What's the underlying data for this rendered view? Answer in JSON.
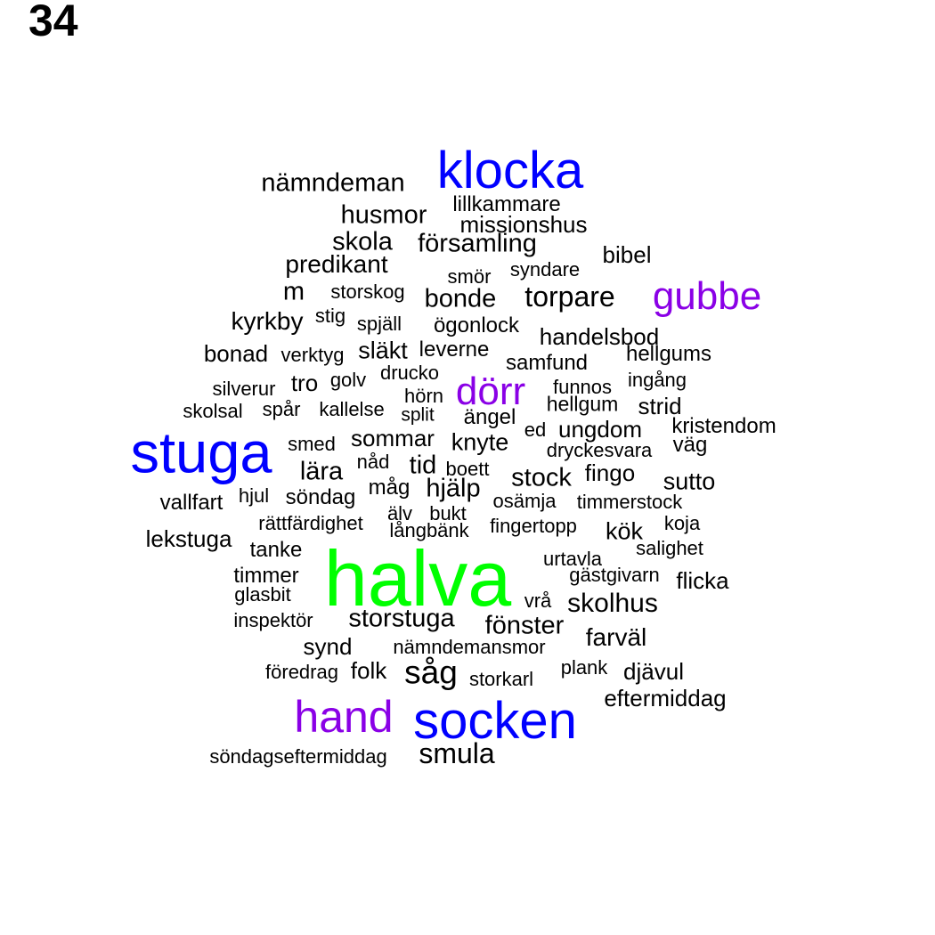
{
  "page_number": "34",
  "colors": {
    "black": "#000000",
    "blue": "#0000ff",
    "purple": "#8a00e6",
    "green": "#00ff00"
  },
  "words": [
    {
      "text": "klocka",
      "color": "blue"
    },
    {
      "text": "nämndeman",
      "color": "black"
    },
    {
      "text": "lillkammare",
      "color": "black"
    },
    {
      "text": "husmor",
      "color": "black"
    },
    {
      "text": "missionshus",
      "color": "black"
    },
    {
      "text": "skola",
      "color": "black"
    },
    {
      "text": "församling",
      "color": "black"
    },
    {
      "text": "bibel",
      "color": "black"
    },
    {
      "text": "predikant",
      "color": "black"
    },
    {
      "text": "syndare",
      "color": "black"
    },
    {
      "text": "smör",
      "color": "black"
    },
    {
      "text": "m",
      "color": "black"
    },
    {
      "text": "storskog",
      "color": "black"
    },
    {
      "text": "bonde",
      "color": "black"
    },
    {
      "text": "torpare",
      "color": "black"
    },
    {
      "text": "gubbe",
      "color": "purple"
    },
    {
      "text": "kyrkby",
      "color": "black"
    },
    {
      "text": "stig",
      "color": "black"
    },
    {
      "text": "spjäll",
      "color": "black"
    },
    {
      "text": "ögonlock",
      "color": "black"
    },
    {
      "text": "handelsbod",
      "color": "black"
    },
    {
      "text": "bonad",
      "color": "black"
    },
    {
      "text": "verktyg",
      "color": "black"
    },
    {
      "text": "släkt",
      "color": "black"
    },
    {
      "text": "leverne",
      "color": "black"
    },
    {
      "text": "samfund",
      "color": "black"
    },
    {
      "text": "hellgums",
      "color": "black"
    },
    {
      "text": "silverur",
      "color": "black"
    },
    {
      "text": "tro",
      "color": "black"
    },
    {
      "text": "golv",
      "color": "black"
    },
    {
      "text": "drucko",
      "color": "black"
    },
    {
      "text": "hörn",
      "color": "black"
    },
    {
      "text": "dörr",
      "color": "purple"
    },
    {
      "text": "funnos",
      "color": "black"
    },
    {
      "text": "ingång",
      "color": "black"
    },
    {
      "text": "skolsal",
      "color": "black"
    },
    {
      "text": "spår",
      "color": "black"
    },
    {
      "text": "kallelse",
      "color": "black"
    },
    {
      "text": "split",
      "color": "black"
    },
    {
      "text": "ängel",
      "color": "black"
    },
    {
      "text": "hellgum",
      "color": "black"
    },
    {
      "text": "strid",
      "color": "black"
    },
    {
      "text": "stuga",
      "color": "blue"
    },
    {
      "text": "smed",
      "color": "black"
    },
    {
      "text": "sommar",
      "color": "black"
    },
    {
      "text": "knyte",
      "color": "black"
    },
    {
      "text": "ed",
      "color": "black"
    },
    {
      "text": "ungdom",
      "color": "black"
    },
    {
      "text": "kristendom",
      "color": "black"
    },
    {
      "text": "dryckesvara",
      "color": "black"
    },
    {
      "text": "väg",
      "color": "black"
    },
    {
      "text": "lära",
      "color": "black"
    },
    {
      "text": "nåd",
      "color": "black"
    },
    {
      "text": "tid",
      "color": "black"
    },
    {
      "text": "boett",
      "color": "black"
    },
    {
      "text": "stock",
      "color": "black"
    },
    {
      "text": "fingo",
      "color": "black"
    },
    {
      "text": "sutto",
      "color": "black"
    },
    {
      "text": "vallfart",
      "color": "black"
    },
    {
      "text": "hjul",
      "color": "black"
    },
    {
      "text": "söndag",
      "color": "black"
    },
    {
      "text": "måg",
      "color": "black"
    },
    {
      "text": "hjälp",
      "color": "black"
    },
    {
      "text": "osämja",
      "color": "black"
    },
    {
      "text": "timmerstock",
      "color": "black"
    },
    {
      "text": "älv",
      "color": "black"
    },
    {
      "text": "bukt",
      "color": "black"
    },
    {
      "text": "rättfärdighet",
      "color": "black"
    },
    {
      "text": "långbänk",
      "color": "black"
    },
    {
      "text": "fingertopp",
      "color": "black"
    },
    {
      "text": "koja",
      "color": "black"
    },
    {
      "text": "kök",
      "color": "black"
    },
    {
      "text": "lekstuga",
      "color": "black"
    },
    {
      "text": "tanke",
      "color": "black"
    },
    {
      "text": "salighet",
      "color": "black"
    },
    {
      "text": "halva",
      "color": "green"
    },
    {
      "text": "urtavla",
      "color": "black"
    },
    {
      "text": "timmer",
      "color": "black"
    },
    {
      "text": "gästgivarn",
      "color": "black"
    },
    {
      "text": "flicka",
      "color": "black"
    },
    {
      "text": "glasbit",
      "color": "black"
    },
    {
      "text": "vrå",
      "color": "black"
    },
    {
      "text": "skolhus",
      "color": "black"
    },
    {
      "text": "inspektör",
      "color": "black"
    },
    {
      "text": "storstuga",
      "color": "black"
    },
    {
      "text": "fönster",
      "color": "black"
    },
    {
      "text": "farväl",
      "color": "black"
    },
    {
      "text": "synd",
      "color": "black"
    },
    {
      "text": "nämndemansmor",
      "color": "black"
    },
    {
      "text": "föredrag",
      "color": "black"
    },
    {
      "text": "folk",
      "color": "black"
    },
    {
      "text": "såg",
      "color": "black"
    },
    {
      "text": "storkarl",
      "color": "black"
    },
    {
      "text": "plank",
      "color": "black"
    },
    {
      "text": "djävul",
      "color": "black"
    },
    {
      "text": "eftermiddag",
      "color": "black"
    },
    {
      "text": "hand",
      "color": "purple"
    },
    {
      "text": "socken",
      "color": "blue"
    },
    {
      "text": "söndagseftermiddag",
      "color": "black"
    },
    {
      "text": "smula",
      "color": "black"
    }
  ]
}
